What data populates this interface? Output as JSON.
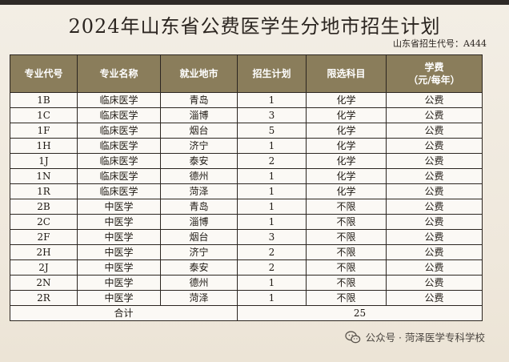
{
  "title": "2024年山东省公费医学生分地市招生计划",
  "code_line": "山东省招生代号：A444",
  "headers": [
    "专业代号",
    "专业名称",
    "就业地市",
    "招生计划",
    "限选科目",
    "学费|（元/每年）"
  ],
  "rows": [
    [
      "1B",
      "临床医学",
      "青岛",
      "1",
      "化学",
      "公费"
    ],
    [
      "1C",
      "临床医学",
      "淄博",
      "3",
      "化学",
      "公费"
    ],
    [
      "1F",
      "临床医学",
      "烟台",
      "5",
      "化学",
      "公费"
    ],
    [
      "1H",
      "临床医学",
      "济宁",
      "1",
      "化学",
      "公费"
    ],
    [
      "1J",
      "临床医学",
      "泰安",
      "2",
      "化学",
      "公费"
    ],
    [
      "1N",
      "临床医学",
      "德州",
      "1",
      "化学",
      "公费"
    ],
    [
      "1R",
      "临床医学",
      "菏泽",
      "1",
      "化学",
      "公费"
    ],
    [
      "2B",
      "中医学",
      "青岛",
      "1",
      "不限",
      "公费"
    ],
    [
      "2C",
      "中医学",
      "淄博",
      "1",
      "不限",
      "公费"
    ],
    [
      "2F",
      "中医学",
      "烟台",
      "3",
      "不限",
      "公费"
    ],
    [
      "2H",
      "中医学",
      "济宁",
      "2",
      "不限",
      "公费"
    ],
    [
      "2J",
      "中医学",
      "泰安",
      "2",
      "不限",
      "公费"
    ],
    [
      "2N",
      "中医学",
      "德州",
      "1",
      "不限",
      "公费"
    ],
    [
      "2R",
      "中医学",
      "菏泽",
      "1",
      "不限",
      "公费"
    ]
  ],
  "total_label": "合计",
  "total_value": "25",
  "watermark": "公众号 · 菏泽医学专科学校"
}
